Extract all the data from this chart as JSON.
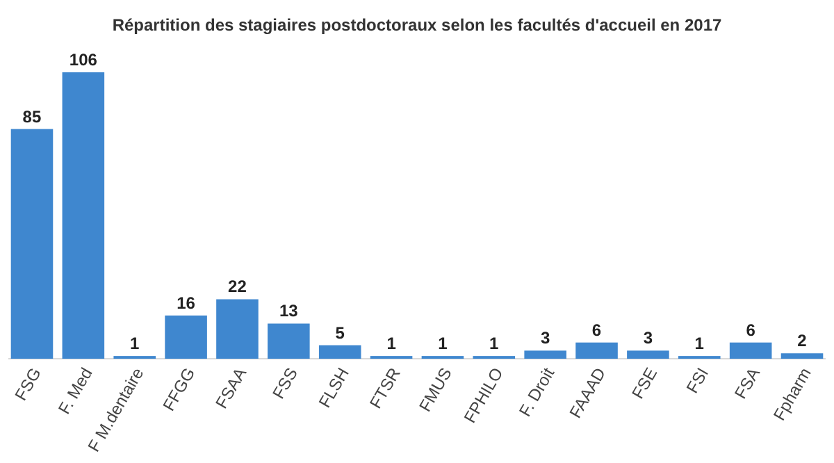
{
  "chart_data": {
    "type": "bar",
    "title": "Répartition des stagiaires postdoctoraux selon les facultés d'accueil en 2017",
    "categories": [
      "FSG",
      "F. Med",
      "F M.dentaire",
      "FFGG",
      "FSAA",
      "FSS",
      "FLSH",
      "FTSR",
      "FMUS",
      "FPHILO",
      "F. Droit",
      "FAAAD",
      "FSE",
      "FSI",
      "FSA",
      "Fpharm"
    ],
    "values": [
      85,
      106,
      1,
      16,
      22,
      13,
      5,
      1,
      1,
      1,
      3,
      6,
      3,
      1,
      6,
      2
    ],
    "color": "#3f87cf",
    "data_labels": true
  }
}
